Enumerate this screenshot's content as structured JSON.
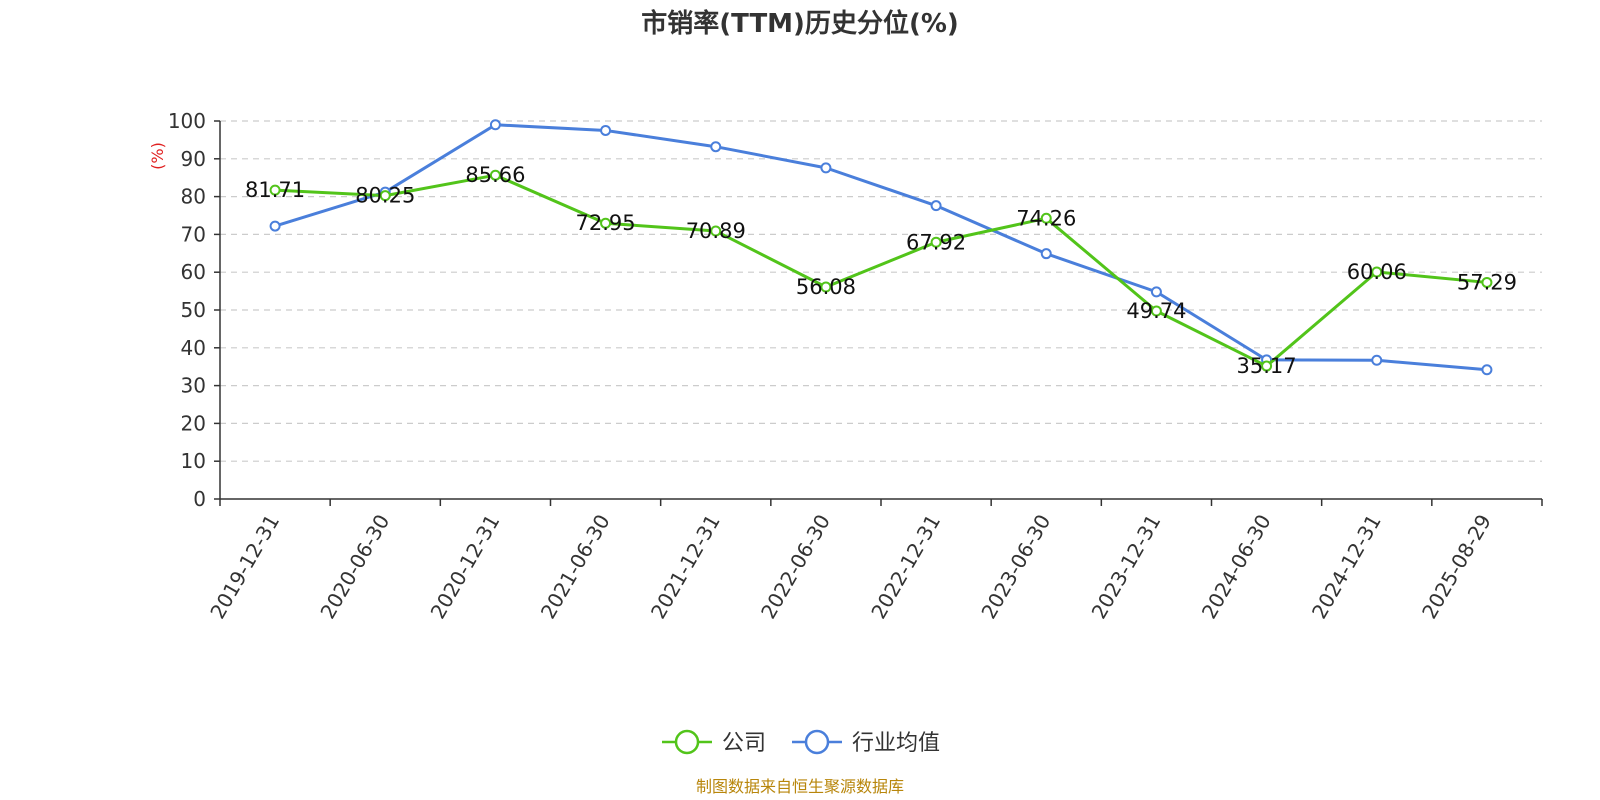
{
  "chart_data": {
    "type": "line",
    "title": "市销率(TTM)历史分位(%)",
    "ylabel": "(%)",
    "ylim": [
      0,
      100
    ],
    "yticks": [
      0,
      10,
      20,
      30,
      40,
      50,
      60,
      70,
      80,
      90,
      100
    ],
    "categories": [
      "2019-12-31",
      "2020-06-30",
      "2020-12-31",
      "2021-06-30",
      "2021-12-31",
      "2022-06-30",
      "2022-12-31",
      "2023-06-30",
      "2023-12-31",
      "2024-06-30",
      "2024-12-31",
      "2025-08-29"
    ],
    "grid": true,
    "legend_position": "bottom",
    "series": [
      {
        "name": "公司",
        "color": "#52c41a",
        "values": [
          81.71,
          80.25,
          85.66,
          72.95,
          70.89,
          56.08,
          67.92,
          74.26,
          49.74,
          35.17,
          60.06,
          57.29
        ],
        "labels": [
          "81.71",
          "80.25",
          "85.66",
          "72.95",
          "70.89",
          "56.08",
          "67.92",
          "74.26",
          "49.74",
          "35.17",
          "60.06",
          "57.29"
        ]
      },
      {
        "name": "行业均值",
        "color": "#4a7fdb",
        "values": [
          72.2,
          81.2,
          99.0,
          97.5,
          93.2,
          87.6,
          77.6,
          64.9,
          54.8,
          36.8,
          36.7,
          34.2
        ]
      }
    ]
  },
  "footer": {
    "source": "制图数据来自恒生聚源数据库",
    "source_color": "#b8860b"
  },
  "colors": {
    "ylabel": "#e02020",
    "axis": "#333333",
    "grid": "#cccccc"
  }
}
